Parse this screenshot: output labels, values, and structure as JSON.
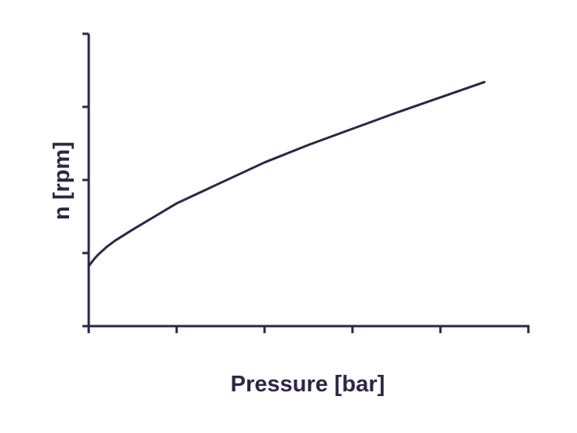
{
  "colors": {
    "ink": "#2f2546",
    "background": "#ffffff"
  },
  "chart_data": {
    "type": "line",
    "title": "",
    "xlabel": "Pressure [bar]",
    "ylabel": "n [rpm]",
    "xlim": [
      0,
      5
    ],
    "ylim": [
      0,
      4
    ],
    "x_ticks": [
      0,
      1,
      2,
      3,
      4,
      5
    ],
    "y_ticks": [
      0,
      1,
      2,
      3,
      4
    ],
    "tick_labels_shown": false,
    "grid": false,
    "legend": "none",
    "series": [
      {
        "x": [
          0,
          0.05,
          0.1,
          0.2,
          0.3,
          0.5,
          0.75,
          1.0,
          1.5,
          2.0,
          2.5,
          3.0,
          3.5,
          4.0,
          4.5
        ],
        "y": [
          0.82,
          0.9,
          0.97,
          1.08,
          1.17,
          1.32,
          1.5,
          1.68,
          1.96,
          2.24,
          2.48,
          2.7,
          2.92,
          3.13,
          3.34
        ]
      }
    ]
  }
}
